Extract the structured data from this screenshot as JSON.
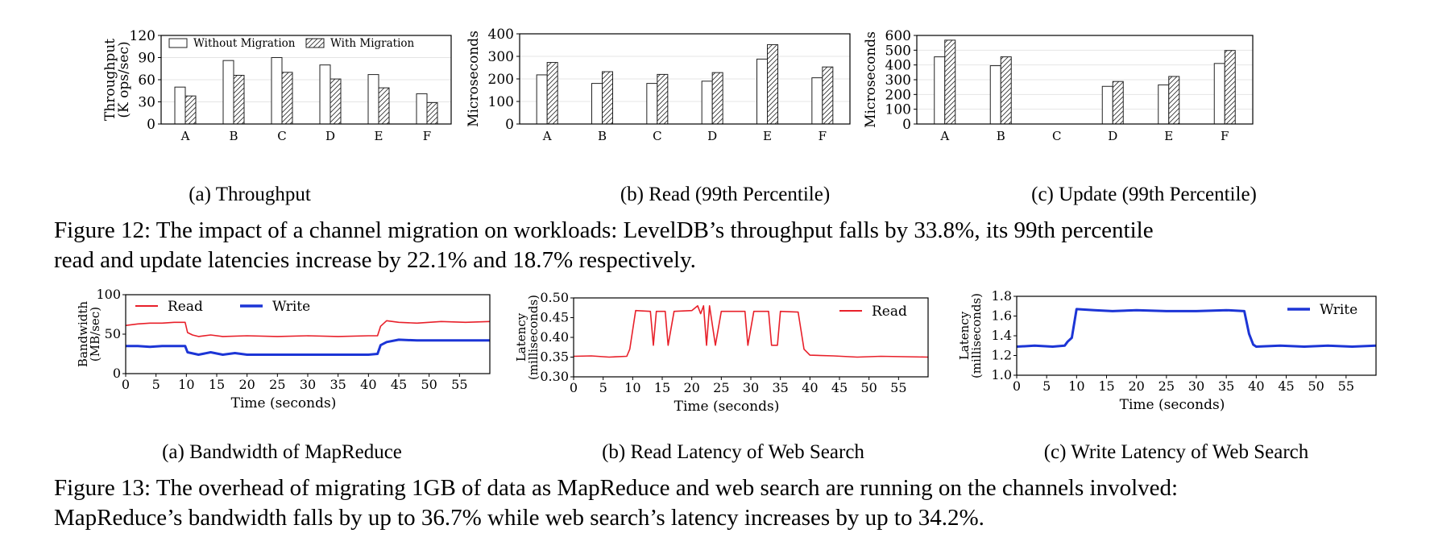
{
  "figure12": {
    "caption_line1": "Figure 12: The impact of a channel migration on workloads: LevelDB’s throughput falls by 33.8%, its 99th percentile",
    "caption_line2": "read and update latencies increase by 22.1% and 18.7% respectively.",
    "subcaptions": [
      "(a)  Throughput",
      "(b)  Read (99th Percentile)",
      "(c)  Update (99th Percentile)"
    ]
  },
  "figure13": {
    "caption_line1": "Figure 13: The overhead of migrating 1GB of data as MapReduce and web search are running on the channels involved:",
    "caption_line2": "MapReduce’s bandwidth falls by up to 36.7% while web search’s latency increases by up to 34.2%.",
    "subcaptions": [
      "(a)  Bandwidth of MapReduce",
      "(b)  Read Latency of Web Search",
      "(c)  Write Latency of Web Search"
    ]
  },
  "chart_data": [
    {
      "id": "fig12a",
      "type": "bar",
      "ylabel": [
        "Throughput",
        "(K ops/sec)"
      ],
      "categories": [
        "A",
        "B",
        "C",
        "D",
        "E",
        "F"
      ],
      "ylim": [
        0,
        120
      ],
      "yticks": [
        0,
        30,
        60,
        90,
        120
      ],
      "legend": "top-left",
      "series": [
        {
          "name": "Without Migration",
          "values": [
            50,
            86,
            90,
            80,
            67,
            41
          ]
        },
        {
          "name": "With Migration",
          "values": [
            38,
            66,
            70,
            61,
            49,
            29
          ]
        }
      ]
    },
    {
      "id": "fig12b",
      "type": "bar",
      "ylabel": [
        "Microseconds"
      ],
      "categories": [
        "A",
        "B",
        "C",
        "D",
        "E",
        "F"
      ],
      "ylim": [
        0,
        400
      ],
      "yticks": [
        0,
        100,
        200,
        300,
        400
      ],
      "series": [
        {
          "name": "Without Migration",
          "values": [
            218,
            180,
            180,
            190,
            288,
            205
          ]
        },
        {
          "name": "With Migration",
          "values": [
            273,
            232,
            220,
            228,
            352,
            253
          ]
        }
      ]
    },
    {
      "id": "fig12c",
      "type": "bar",
      "ylabel": [
        "Microseconds"
      ],
      "categories": [
        "A",
        "B",
        "C",
        "D",
        "E",
        "F"
      ],
      "ylim": [
        0,
        600
      ],
      "yticks": [
        0,
        100,
        200,
        300,
        400,
        500,
        600
      ],
      "series": [
        {
          "name": "Without Migration",
          "values": [
            455,
            395,
            0,
            255,
            265,
            410
          ]
        },
        {
          "name": "With Migration",
          "values": [
            568,
            455,
            0,
            288,
            322,
            498
          ]
        }
      ]
    },
    {
      "id": "fig13a",
      "type": "line",
      "xlabel": "Time (seconds)",
      "ylabel": [
        "Bandwidth",
        "(MB/sec)"
      ],
      "xlim": [
        0,
        60
      ],
      "ylim": [
        0,
        100
      ],
      "xticks": [
        0,
        5,
        10,
        15,
        20,
        25,
        30,
        35,
        40,
        45,
        50,
        55
      ],
      "yticks": [
        0,
        50,
        100
      ],
      "legend": "top-left",
      "series": [
        {
          "name": "Read",
          "color": "#e8202a",
          "x": [
            0,
            2,
            4,
            6,
            8,
            9.8,
            10.2,
            11,
            12,
            14,
            16,
            20,
            25,
            30,
            35,
            40,
            41.5,
            42,
            43,
            45,
            48,
            52,
            56,
            60
          ],
          "y": [
            61,
            63,
            64,
            64,
            65,
            65,
            52,
            49,
            47,
            49,
            47,
            48,
            47,
            48,
            47,
            48,
            48,
            60,
            67,
            65,
            64,
            66,
            65,
            66
          ]
        },
        {
          "name": "Write",
          "color": "#1c35d6",
          "x": [
            0,
            2,
            4,
            6,
            8,
            9.8,
            10.2,
            12,
            14,
            16,
            18,
            20,
            25,
            30,
            35,
            40,
            41.5,
            42,
            43,
            45,
            48,
            52,
            56,
            60
          ],
          "y": [
            35,
            35,
            34,
            35,
            35,
            35,
            27,
            24,
            27,
            24,
            26,
            24,
            24,
            24,
            24,
            24,
            25,
            36,
            40,
            43,
            42,
            42,
            42,
            42
          ]
        }
      ]
    },
    {
      "id": "fig13b",
      "type": "line",
      "xlabel": "Time (seconds)",
      "ylabel": [
        "Latency",
        "(milliseconds)"
      ],
      "xlim": [
        0,
        60
      ],
      "ylim": [
        0.3,
        0.5
      ],
      "xticks": [
        0,
        5,
        10,
        15,
        20,
        25,
        30,
        35,
        40,
        45,
        50,
        55
      ],
      "yticks": [
        0.3,
        0.35,
        0.4,
        0.45,
        0.5
      ],
      "legend": "top-right",
      "series": [
        {
          "name": "Read",
          "color": "#e8202a",
          "x": [
            0,
            3,
            6,
            9,
            9.5,
            10.5,
            13,
            13.5,
            14,
            15.5,
            16,
            17,
            20,
            21,
            21.5,
            22,
            22.5,
            23,
            24,
            25,
            29,
            29.5,
            30.5,
            31,
            33,
            33.5,
            34.5,
            35,
            38,
            39,
            40,
            44,
            48,
            52,
            56,
            60
          ],
          "y": [
            0.352,
            0.353,
            0.35,
            0.352,
            0.37,
            0.468,
            0.466,
            0.38,
            0.466,
            0.466,
            0.38,
            0.466,
            0.468,
            0.48,
            0.46,
            0.48,
            0.38,
            0.48,
            0.38,
            0.466,
            0.466,
            0.38,
            0.466,
            0.466,
            0.466,
            0.38,
            0.38,
            0.466,
            0.464,
            0.37,
            0.355,
            0.353,
            0.35,
            0.352,
            0.351,
            0.35
          ]
        }
      ]
    },
    {
      "id": "fig13c",
      "type": "line",
      "xlabel": "Time (seconds)",
      "ylabel": [
        "Latency",
        "(milliseconds)"
      ],
      "xlim": [
        0,
        60
      ],
      "ylim": [
        1.0,
        1.8
      ],
      "xticks": [
        0,
        5,
        10,
        15,
        20,
        25,
        30,
        35,
        40,
        45,
        50,
        55
      ],
      "yticks": [
        1.0,
        1.2,
        1.4,
        1.6,
        1.8
      ],
      "legend": "top-right",
      "series": [
        {
          "name": "Write",
          "color": "#1c35d6",
          "x": [
            0,
            3,
            6,
            8,
            8.5,
            9.2,
            10,
            13,
            16,
            20,
            25,
            30,
            35,
            38,
            38.8,
            39.5,
            40,
            44,
            48,
            52,
            56,
            60
          ],
          "y": [
            1.29,
            1.3,
            1.29,
            1.3,
            1.34,
            1.38,
            1.67,
            1.66,
            1.65,
            1.66,
            1.65,
            1.65,
            1.66,
            1.65,
            1.42,
            1.31,
            1.29,
            1.3,
            1.29,
            1.3,
            1.29,
            1.3
          ]
        }
      ]
    }
  ]
}
